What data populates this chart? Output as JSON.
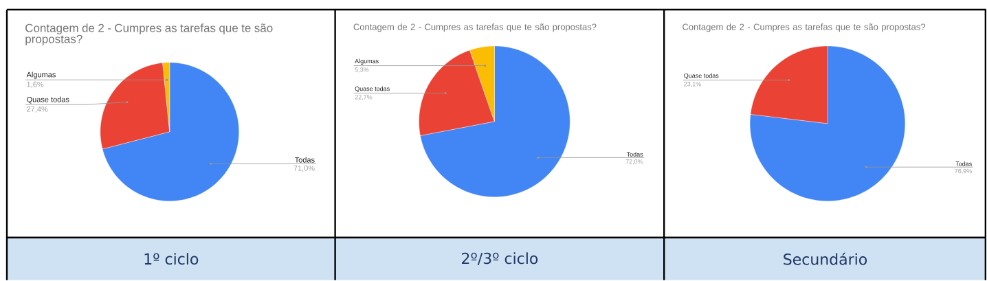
{
  "chart_data": [
    {
      "type": "pie",
      "title": "Contagem de 2 - Cumpres as tarefas que te são propostas?",
      "categories": [
        "Todas",
        "Quase todas",
        "Algumas"
      ],
      "values": [
        71.0,
        27.4,
        1.6
      ],
      "colors": [
        "#4285f4",
        "#ea4335",
        "#fbbc04"
      ],
      "value_labels": [
        "71,0%",
        "27,4%",
        "1,6%"
      ],
      "annotations": [
        "1º ciclo"
      ]
    },
    {
      "type": "pie",
      "title": "Contagem de 2 - Cumpres as tarefas que te são propostas?",
      "categories": [
        "Todas",
        "Quase todas",
        "Algumas"
      ],
      "values": [
        72.0,
        22.7,
        5.3
      ],
      "colors": [
        "#4285f4",
        "#ea4335",
        "#fbbc04"
      ],
      "value_labels": [
        "72,0%",
        "22,7%",
        "5,3%"
      ],
      "annotations": [
        "2º/3º ciclo"
      ]
    },
    {
      "type": "pie",
      "title": "Contagem de 2 - Cumpres as tarefas que te são propostas?",
      "categories": [
        "Todas",
        "Quase todas"
      ],
      "values": [
        76.9,
        23.1
      ],
      "colors": [
        "#4285f4",
        "#ea4335"
      ],
      "value_labels": [
        "76,9%",
        "23,1%"
      ],
      "annotations": [
        "Secundário"
      ]
    }
  ]
}
